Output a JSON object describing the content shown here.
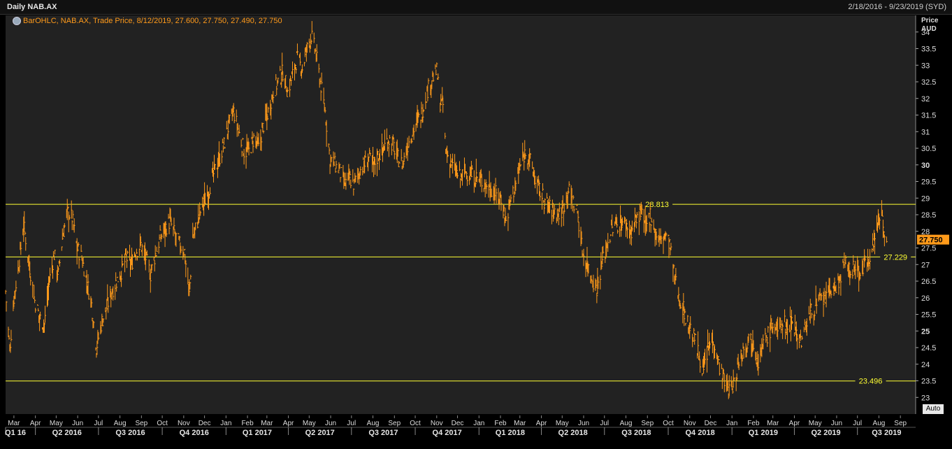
{
  "header": {
    "title": "Daily NAB.AX",
    "date_range": "2/18/2016 - 9/23/2019 (SYD)"
  },
  "legend": {
    "icon": "chart-series-icon",
    "text": "BarOHLC, NAB.AX, Trade Price, 8/12/2019, 27.600, 27.750, 27.490, 27.750"
  },
  "axis": {
    "price_label": "Price",
    "currency_label": "AUD",
    "auto_button": "Auto"
  },
  "colors": {
    "series": "#ff9a1a",
    "hline": "#ffff33",
    "background": "#222222",
    "last_price_bg": "#ff9a1a"
  },
  "chart_data": {
    "type": "line",
    "title": "Daily NAB.AX",
    "ylabel": "Price AUD",
    "ylim": [
      22.5,
      34.5
    ],
    "y_ticks": [
      23,
      23.5,
      24,
      24.5,
      25,
      25.5,
      26,
      26.5,
      27,
      27.5,
      28,
      28.5,
      29,
      29.5,
      30,
      30.5,
      31,
      31.5,
      32,
      32.5,
      33,
      33.5,
      34
    ],
    "y_ticks_bold": [
      25,
      30
    ],
    "month_ticks": [
      {
        "label": "Mar",
        "d": "2016-03-01"
      },
      {
        "label": "Apr",
        "d": "2016-04-01"
      },
      {
        "label": "May",
        "d": "2016-05-01"
      },
      {
        "label": "Jun",
        "d": "2016-06-01"
      },
      {
        "label": "Jul",
        "d": "2016-07-01"
      },
      {
        "label": "Aug",
        "d": "2016-08-01"
      },
      {
        "label": "Sep",
        "d": "2016-09-01"
      },
      {
        "label": "Oct",
        "d": "2016-10-01"
      },
      {
        "label": "Nov",
        "d": "2016-11-01"
      },
      {
        "label": "Dec",
        "d": "2016-12-01"
      },
      {
        "label": "Jan",
        "d": "2017-01-01"
      },
      {
        "label": "Feb",
        "d": "2017-02-01"
      },
      {
        "label": "Mar",
        "d": "2017-03-01"
      },
      {
        "label": "Apr",
        "d": "2017-04-01"
      },
      {
        "label": "May",
        "d": "2017-05-01"
      },
      {
        "label": "Jun",
        "d": "2017-06-01"
      },
      {
        "label": "Jul",
        "d": "2017-07-01"
      },
      {
        "label": "Aug",
        "d": "2017-08-01"
      },
      {
        "label": "Sep",
        "d": "2017-09-01"
      },
      {
        "label": "Oct",
        "d": "2017-10-01"
      },
      {
        "label": "Nov",
        "d": "2017-11-01"
      },
      {
        "label": "Dec",
        "d": "2017-12-01"
      },
      {
        "label": "Jan",
        "d": "2018-01-01"
      },
      {
        "label": "Feb",
        "d": "2018-02-01"
      },
      {
        "label": "Mar",
        "d": "2018-03-01"
      },
      {
        "label": "Apr",
        "d": "2018-04-01"
      },
      {
        "label": "May",
        "d": "2018-05-01"
      },
      {
        "label": "Jun",
        "d": "2018-06-01"
      },
      {
        "label": "Jul",
        "d": "2018-07-01"
      },
      {
        "label": "Aug",
        "d": "2018-08-01"
      },
      {
        "label": "Sep",
        "d": "2018-09-01"
      },
      {
        "label": "Oct",
        "d": "2018-10-01"
      },
      {
        "label": "Nov",
        "d": "2018-11-01"
      },
      {
        "label": "Dec",
        "d": "2018-12-01"
      },
      {
        "label": "Jan",
        "d": "2019-01-01"
      },
      {
        "label": "Feb",
        "d": "2019-02-01"
      },
      {
        "label": "Mar",
        "d": "2019-03-01"
      },
      {
        "label": "Apr",
        "d": "2019-04-01"
      },
      {
        "label": "May",
        "d": "2019-05-01"
      },
      {
        "label": "Jun",
        "d": "2019-06-01"
      },
      {
        "label": "Jul",
        "d": "2019-07-01"
      },
      {
        "label": "Aug",
        "d": "2019-08-01"
      },
      {
        "label": "Sep",
        "d": "2019-09-01"
      }
    ],
    "quarter_ticks": [
      {
        "label": "Q1 16",
        "d": "2016-02-18",
        "start": true
      },
      {
        "label": "Q2 2016",
        "d": "2016-04-01"
      },
      {
        "label": "Q3 2016",
        "d": "2016-07-01"
      },
      {
        "label": "Q4 2016",
        "d": "2016-10-01"
      },
      {
        "label": "Q1 2017",
        "d": "2017-01-01"
      },
      {
        "label": "Q2 2017",
        "d": "2017-04-01"
      },
      {
        "label": "Q3 2017",
        "d": "2017-07-01"
      },
      {
        "label": "Q4 2017",
        "d": "2017-10-01"
      },
      {
        "label": "Q1 2018",
        "d": "2018-01-01"
      },
      {
        "label": "Q2 2018",
        "d": "2018-04-01"
      },
      {
        "label": "Q3 2018",
        "d": "2018-07-01"
      },
      {
        "label": "Q4 2018",
        "d": "2018-10-01"
      },
      {
        "label": "Q1 2019",
        "d": "2019-01-01"
      },
      {
        "label": "Q2 2019",
        "d": "2019-04-01"
      },
      {
        "label": "Q3 2019",
        "d": "2019-07-01"
      }
    ],
    "x_range": [
      "2016-02-18",
      "2019-09-23"
    ],
    "hlines": [
      {
        "value": 28.813,
        "label": "28.813",
        "label_at": "2018-09-15"
      },
      {
        "value": 27.229,
        "label": "27.229",
        "label_at": "2019-08-25"
      },
      {
        "value": 23.496,
        "label": "23.496",
        "label_at": "2019-07-20"
      }
    ],
    "last_price": {
      "value": 27.75,
      "label": "27.750"
    },
    "series": [
      {
        "values": [
          [
            "2016-02-18",
            26.2
          ],
          [
            "2016-02-24",
            24.4
          ],
          [
            "2016-03-01",
            26.0
          ],
          [
            "2016-03-08",
            27.0
          ],
          [
            "2016-03-15",
            28.2
          ],
          [
            "2016-03-22",
            27.2
          ],
          [
            "2016-03-30",
            26.0
          ],
          [
            "2016-04-07",
            25.4
          ],
          [
            "2016-04-14",
            25.2
          ],
          [
            "2016-04-21",
            26.5
          ],
          [
            "2016-04-28",
            27.3
          ],
          [
            "2016-05-04",
            26.7
          ],
          [
            "2016-05-10",
            27.8
          ],
          [
            "2016-05-17",
            28.6
          ],
          [
            "2016-05-24",
            28.4
          ],
          [
            "2016-05-31",
            27.5
          ],
          [
            "2016-06-07",
            27.2
          ],
          [
            "2016-06-14",
            26.5
          ],
          [
            "2016-06-21",
            25.8
          ],
          [
            "2016-06-28",
            24.5
          ],
          [
            "2016-07-06",
            25.3
          ],
          [
            "2016-07-13",
            25.7
          ],
          [
            "2016-07-20",
            26.2
          ],
          [
            "2016-07-27",
            26.5
          ],
          [
            "2016-08-03",
            26.8
          ],
          [
            "2016-08-10",
            27.2
          ],
          [
            "2016-08-17",
            27.0
          ],
          [
            "2016-08-24",
            27.4
          ],
          [
            "2016-08-31",
            27.6
          ],
          [
            "2016-09-07",
            27.2
          ],
          [
            "2016-09-14",
            26.7
          ],
          [
            "2016-09-21",
            27.3
          ],
          [
            "2016-09-28",
            27.8
          ],
          [
            "2016-10-05",
            28.1
          ],
          [
            "2016-10-12",
            28.3
          ],
          [
            "2016-10-19",
            27.9
          ],
          [
            "2016-10-26",
            27.6
          ],
          [
            "2016-11-02",
            27.4
          ],
          [
            "2016-11-09",
            26.1
          ],
          [
            "2016-11-14",
            27.8
          ],
          [
            "2016-11-21",
            28.3
          ],
          [
            "2016-11-28",
            28.8
          ],
          [
            "2016-12-05",
            29.1
          ],
          [
            "2016-12-12",
            29.6
          ],
          [
            "2016-12-19",
            30.0
          ],
          [
            "2016-12-29",
            30.6
          ],
          [
            "2017-01-05",
            31.2
          ],
          [
            "2017-01-12",
            31.6
          ],
          [
            "2017-01-19",
            31.0
          ],
          [
            "2017-01-27",
            30.4
          ],
          [
            "2017-02-03",
            30.4
          ],
          [
            "2017-02-10",
            30.8
          ],
          [
            "2017-02-17",
            30.5
          ],
          [
            "2017-02-24",
            31.2
          ],
          [
            "2017-03-03",
            31.6
          ],
          [
            "2017-03-10",
            32.2
          ],
          [
            "2017-03-17",
            32.5
          ],
          [
            "2017-03-24",
            32.8
          ],
          [
            "2017-03-31",
            32.2
          ],
          [
            "2017-04-07",
            32.7
          ],
          [
            "2017-04-13",
            33.2
          ],
          [
            "2017-04-21",
            32.9
          ],
          [
            "2017-04-28",
            33.5
          ],
          [
            "2017-05-04",
            33.9
          ],
          [
            "2017-05-10",
            33.4
          ],
          [
            "2017-05-17",
            32.5
          ],
          [
            "2017-05-24",
            31.6
          ],
          [
            "2017-05-31",
            30.2
          ],
          [
            "2017-06-07",
            30.0
          ],
          [
            "2017-06-14",
            29.8
          ],
          [
            "2017-06-21",
            29.4
          ],
          [
            "2017-06-28",
            29.6
          ],
          [
            "2017-07-05",
            29.4
          ],
          [
            "2017-07-12",
            29.8
          ],
          [
            "2017-07-19",
            30.0
          ],
          [
            "2017-07-26",
            30.2
          ],
          [
            "2017-08-02",
            30.0
          ],
          [
            "2017-08-09",
            30.3
          ],
          [
            "2017-08-16",
            30.5
          ],
          [
            "2017-08-23",
            30.8
          ],
          [
            "2017-08-30",
            30.6
          ],
          [
            "2017-09-06",
            30.2
          ],
          [
            "2017-09-13",
            30.0
          ],
          [
            "2017-09-20",
            30.6
          ],
          [
            "2017-09-27",
            31.0
          ],
          [
            "2017-10-04",
            31.3
          ],
          [
            "2017-10-11",
            31.6
          ],
          [
            "2017-10-18",
            32.2
          ],
          [
            "2017-10-25",
            32.6
          ],
          [
            "2017-11-01",
            32.8
          ],
          [
            "2017-11-06",
            31.9
          ],
          [
            "2017-11-10",
            31.8
          ],
          [
            "2017-11-14",
            30.4
          ],
          [
            "2017-11-21",
            30.1
          ],
          [
            "2017-11-28",
            29.8
          ],
          [
            "2017-12-05",
            29.6
          ],
          [
            "2017-12-12",
            29.8
          ],
          [
            "2017-12-19",
            29.7
          ],
          [
            "2017-12-29",
            29.6
          ],
          [
            "2018-01-05",
            29.5
          ],
          [
            "2018-01-12",
            29.4
          ],
          [
            "2018-01-19",
            29.3
          ],
          [
            "2018-01-26",
            29.1
          ],
          [
            "2018-02-02",
            29.0
          ],
          [
            "2018-02-09",
            28.3
          ],
          [
            "2018-02-16",
            29.0
          ],
          [
            "2018-02-23",
            29.4
          ],
          [
            "2018-03-02",
            30.0
          ],
          [
            "2018-03-09",
            30.4
          ],
          [
            "2018-03-16",
            30.1
          ],
          [
            "2018-03-23",
            29.6
          ],
          [
            "2018-03-30",
            29.2
          ],
          [
            "2018-04-06",
            28.9
          ],
          [
            "2018-04-13",
            28.7
          ],
          [
            "2018-04-20",
            28.6
          ],
          [
            "2018-04-27",
            28.5
          ],
          [
            "2018-05-04",
            28.8
          ],
          [
            "2018-05-09",
            29.3
          ],
          [
            "2018-05-16",
            28.9
          ],
          [
            "2018-05-23",
            28.6
          ],
          [
            "2018-05-30",
            27.4
          ],
          [
            "2018-06-06",
            27.0
          ],
          [
            "2018-06-13",
            26.6
          ],
          [
            "2018-06-20",
            26.3
          ],
          [
            "2018-06-27",
            27.0
          ],
          [
            "2018-07-04",
            27.6
          ],
          [
            "2018-07-11",
            28.0
          ],
          [
            "2018-07-18",
            28.2
          ],
          [
            "2018-07-25",
            28.3
          ],
          [
            "2018-08-01",
            28.2
          ],
          [
            "2018-08-08",
            28.0
          ],
          [
            "2018-08-15",
            28.3
          ],
          [
            "2018-08-22",
            28.6
          ],
          [
            "2018-08-29",
            28.1
          ],
          [
            "2018-09-05",
            28.5
          ],
          [
            "2018-09-12",
            28.0
          ],
          [
            "2018-09-19",
            27.7
          ],
          [
            "2018-09-26",
            27.9
          ],
          [
            "2018-10-03",
            27.6
          ],
          [
            "2018-10-10",
            26.6
          ],
          [
            "2018-10-17",
            26.0
          ],
          [
            "2018-10-24",
            25.6
          ],
          [
            "2018-10-31",
            25.1
          ],
          [
            "2018-11-07",
            24.8
          ],
          [
            "2018-11-14",
            24.3
          ],
          [
            "2018-11-21",
            23.8
          ],
          [
            "2018-11-28",
            24.5
          ],
          [
            "2018-12-05",
            24.8
          ],
          [
            "2018-12-12",
            24.1
          ],
          [
            "2018-12-19",
            23.6
          ],
          [
            "2018-12-28",
            23.2
          ],
          [
            "2019-01-04",
            23.4
          ],
          [
            "2019-01-11",
            24.1
          ],
          [
            "2019-01-18",
            24.5
          ],
          [
            "2019-01-25",
            24.8
          ],
          [
            "2019-02-01",
            24.7
          ],
          [
            "2019-02-08",
            24.1
          ],
          [
            "2019-02-15",
            24.6
          ],
          [
            "2019-02-22",
            24.9
          ],
          [
            "2019-03-01",
            25.2
          ],
          [
            "2019-03-08",
            25.0
          ],
          [
            "2019-03-15",
            25.3
          ],
          [
            "2019-03-22",
            25.1
          ],
          [
            "2019-03-29",
            25.4
          ],
          [
            "2019-04-05",
            24.9
          ],
          [
            "2019-04-12",
            24.7
          ],
          [
            "2019-04-19",
            25.3
          ],
          [
            "2019-04-26",
            25.6
          ],
          [
            "2019-05-03",
            25.8
          ],
          [
            "2019-05-10",
            25.9
          ],
          [
            "2019-05-17",
            26.0
          ],
          [
            "2019-05-24",
            26.3
          ],
          [
            "2019-05-31",
            26.2
          ],
          [
            "2019-06-07",
            26.7
          ],
          [
            "2019-06-14",
            27.0
          ],
          [
            "2019-06-21",
            26.8
          ],
          [
            "2019-06-28",
            26.9
          ],
          [
            "2019-07-05",
            26.8
          ],
          [
            "2019-07-12",
            27.0
          ],
          [
            "2019-07-19",
            27.3
          ],
          [
            "2019-07-26",
            27.8
          ],
          [
            "2019-08-01",
            28.4
          ],
          [
            "2019-08-06",
            28.6
          ],
          [
            "2019-08-09",
            27.8
          ],
          [
            "2019-08-12",
            27.75
          ]
        ]
      }
    ]
  }
}
